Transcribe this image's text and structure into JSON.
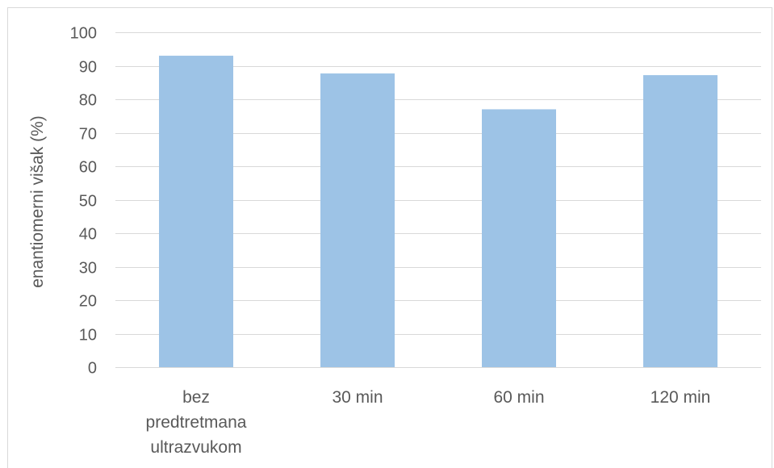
{
  "chart_data": {
    "type": "bar",
    "ylabel": "enantiomerni višak (%)",
    "categories": [
      "bez predtretmana ultrazvukom",
      "30 min",
      "60 min",
      "120 min"
    ],
    "values": [
      93,
      87.7,
      77,
      87.2
    ],
    "ylim": [
      0,
      100
    ],
    "yticks": [
      0,
      10,
      20,
      30,
      40,
      50,
      60,
      70,
      80,
      90,
      100
    ],
    "grid": true,
    "bar_color": "#9DC3E6",
    "text_color": "#595959",
    "grid_color": "#D9D9D9"
  }
}
